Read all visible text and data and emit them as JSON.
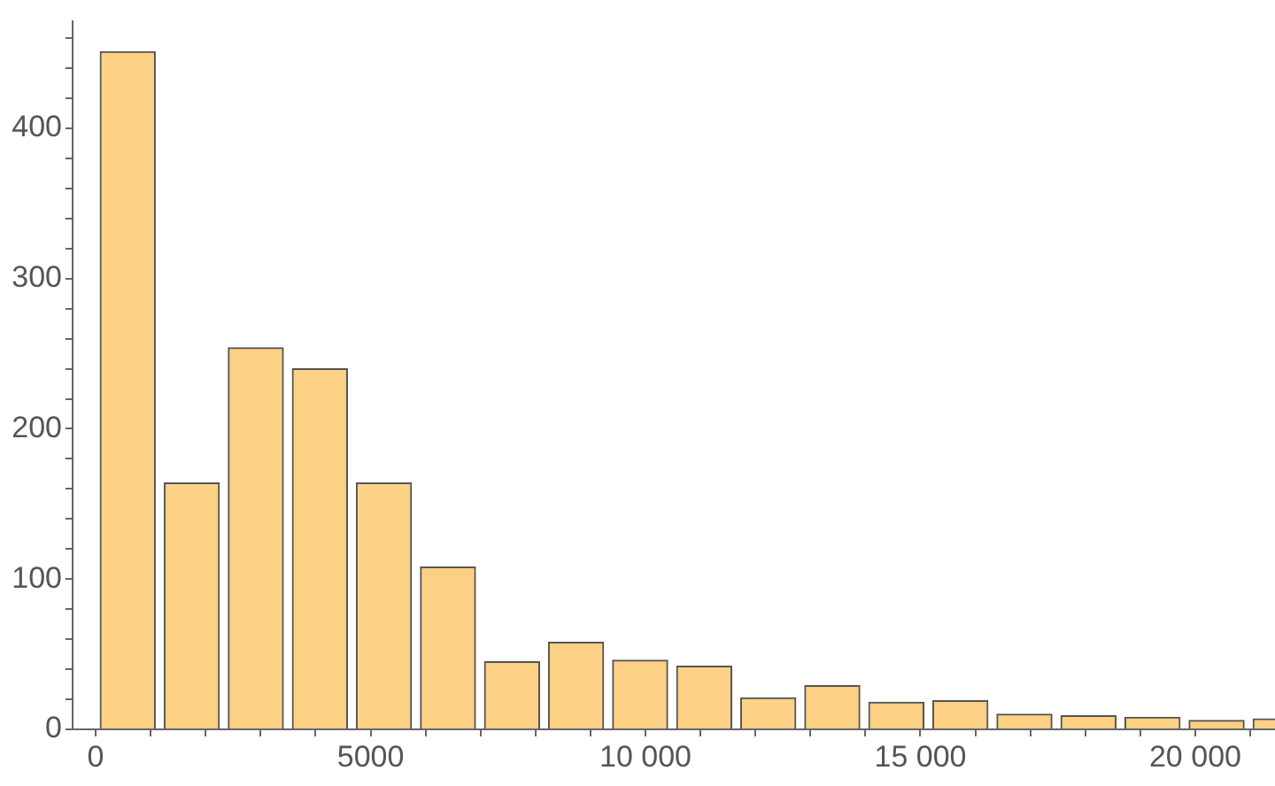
{
  "chart_data": {
    "type": "histogram",
    "bins": [
      0,
      1165,
      2330,
      3495,
      4660,
      5825,
      6990,
      8155,
      9320,
      10485,
      11650,
      12815,
      13980,
      15145,
      16310,
      17475,
      18640,
      19805,
      20970,
      22135
    ],
    "values": [
      451,
      164,
      254,
      240,
      164,
      108,
      45,
      58,
      46,
      42,
      21,
      29,
      18,
      19,
      10,
      9,
      8,
      6,
      7
    ],
    "color": "#fcd085",
    "xlim": [
      -420,
      21450
    ],
    "xticks": [
      0,
      {
        "value": 1000,
        "label": null
      },
      {
        "value": 2000,
        "label": null
      },
      {
        "value": 3000,
        "label": null
      },
      {
        "value": 4000,
        "label": null
      },
      5000,
      {
        "value": 6000,
        "label": null
      },
      {
        "value": 7000,
        "label": null
      },
      {
        "value": 8000,
        "label": null
      },
      {
        "value": 9000,
        "label": null
      },
      {
        "value": 10000,
        "label": "10 000"
      },
      {
        "value": 11000,
        "label": null
      },
      {
        "value": 12000,
        "label": null
      },
      {
        "value": 13000,
        "label": null
      },
      {
        "value": 14000,
        "label": null
      },
      {
        "value": 15000,
        "label": "15 000"
      },
      {
        "value": 16000,
        "label": null
      },
      {
        "value": 17000,
        "label": null
      },
      {
        "value": 18000,
        "label": null
      },
      {
        "value": 19000,
        "label": null
      },
      {
        "value": 20000,
        "label": "20 000"
      },
      {
        "value": 21000,
        "label": null
      }
    ],
    "ylim": [
      0,
      471
    ],
    "yticks": [
      0,
      {
        "value": 20,
        "label": null
      },
      {
        "value": 40,
        "label": null
      },
      {
        "value": 60,
        "label": null
      },
      {
        "value": 80,
        "label": null
      },
      100,
      {
        "value": 120,
        "label": null
      },
      {
        "value": 140,
        "label": null
      },
      {
        "value": 160,
        "label": null
      },
      {
        "value": 180,
        "label": null
      },
      200,
      {
        "value": 220,
        "label": null
      },
      {
        "value": 240,
        "label": null
      },
      {
        "value": 260,
        "label": null
      },
      {
        "value": 280,
        "label": null
      },
      300,
      {
        "value": 320,
        "label": null
      },
      {
        "value": 340,
        "label": null
      },
      {
        "value": 360,
        "label": null
      },
      {
        "value": 380,
        "label": null
      },
      400,
      {
        "value": 420,
        "label": null
      },
      {
        "value": 440,
        "label": null
      },
      {
        "value": 460,
        "label": null
      }
    ]
  }
}
